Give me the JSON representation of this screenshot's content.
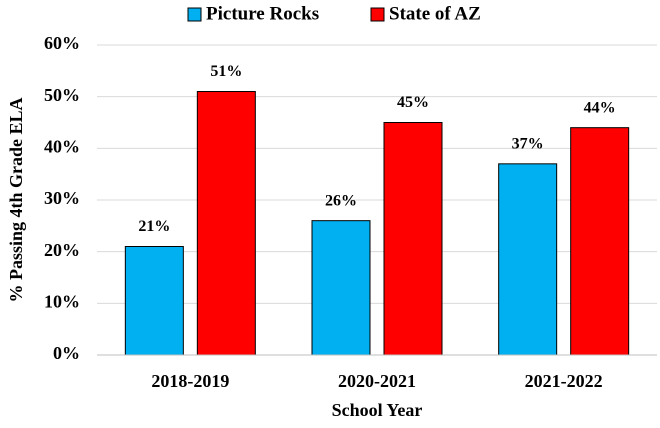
{
  "chart_data": {
    "type": "bar",
    "categories": [
      "2018-2019",
      "2020-2021",
      "2021-2022"
    ],
    "series": [
      {
        "name": "Picture Rocks",
        "color": "#00b0f0",
        "values": [
          21,
          26,
          37
        ],
        "value_labels": [
          "21%",
          "26%",
          "37%"
        ]
      },
      {
        "name": "State of AZ",
        "color": "#ff0000",
        "values": [
          51,
          45,
          44
        ],
        "value_labels": [
          "51%",
          "45%",
          "44%"
        ]
      }
    ],
    "xlabel": "School Year",
    "ylabel": "% Passing 4th Grade ELA",
    "ylim": [
      0,
      60
    ],
    "yticks": [
      {
        "value": 0,
        "label": "0%"
      },
      {
        "value": 10,
        "label": "10%"
      },
      {
        "value": 20,
        "label": "20%"
      },
      {
        "value": 30,
        "label": "30%"
      },
      {
        "value": 40,
        "label": "40%"
      },
      {
        "value": 50,
        "label": "50%"
      },
      {
        "value": 60,
        "label": "60%"
      }
    ],
    "grid": true,
    "legend": "top"
  }
}
